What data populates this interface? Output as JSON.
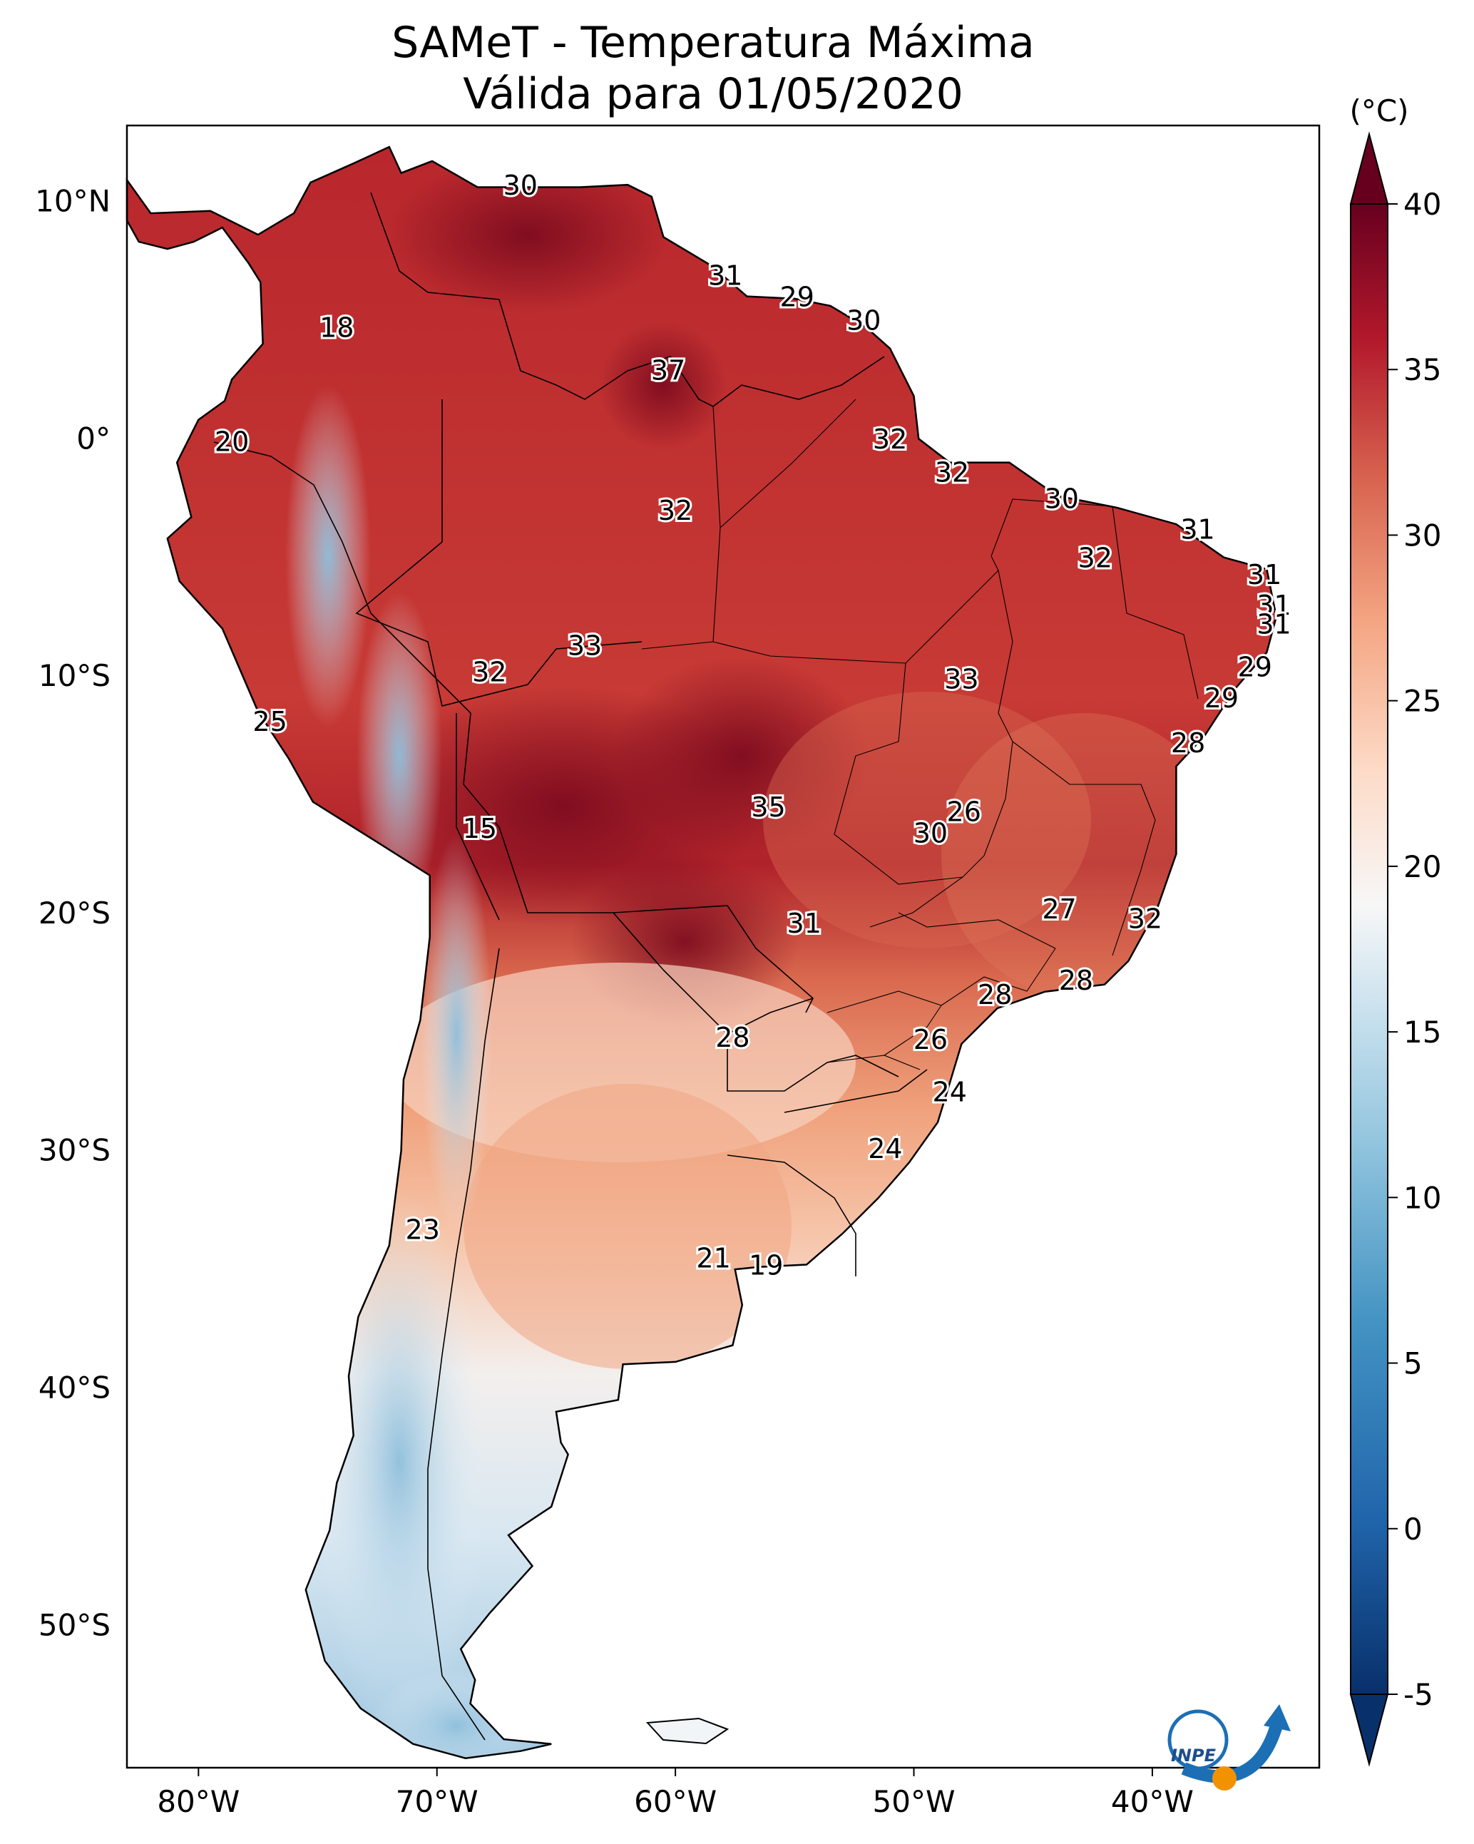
{
  "title_line1": "SAMeT - Temperatura Máxima",
  "title_line2": "Válida para 01/05/2020",
  "colorbar": {
    "unit": "(°C)",
    "ticks": [
      "40",
      "35",
      "30",
      "25",
      "20",
      "15",
      "10",
      "5",
      "0",
      "-5"
    ]
  },
  "axes": {
    "lon_ticks": [
      "80°W",
      "70°W",
      "60°W",
      "50°W",
      "40°W"
    ],
    "lat_ticks": [
      "10°N",
      "0°",
      "10°S",
      "20°S",
      "30°S",
      "40°S",
      "50°S"
    ]
  },
  "logo_text": "INPE",
  "colors": {
    "hot": "#8b0a1d",
    "warm": "#c8373a",
    "mild": "#f2a07c",
    "cool": "#f7f7f7",
    "cold": "#4a8fc6",
    "very_cold": "#08306b"
  },
  "station_labels": [
    {
      "text": "30",
      "lon": -66.5,
      "lat": 10.6
    },
    {
      "text": "31",
      "lon": -57.9,
      "lat": 6.8
    },
    {
      "text": "29",
      "lon": -54.9,
      "lat": 5.9
    },
    {
      "text": "30",
      "lon": -52.1,
      "lat": 4.9
    },
    {
      "text": "37",
      "lon": -60.3,
      "lat": 2.8
    },
    {
      "text": "18",
      "lon": -74.2,
      "lat": 4.6
    },
    {
      "text": "20",
      "lon": -78.6,
      "lat": -0.2
    },
    {
      "text": "32",
      "lon": -51.0,
      "lat": -0.1
    },
    {
      "text": "32",
      "lon": -48.4,
      "lat": -1.5
    },
    {
      "text": "32",
      "lon": -60.0,
      "lat": -3.1
    },
    {
      "text": "30",
      "lon": -43.8,
      "lat": -2.6
    },
    {
      "text": "31",
      "lon": -38.1,
      "lat": -3.9
    },
    {
      "text": "32",
      "lon": -42.4,
      "lat": -5.1
    },
    {
      "text": "31",
      "lon": -35.3,
      "lat": -5.8
    },
    {
      "text": "31",
      "lon": -34.9,
      "lat": -7.1
    },
    {
      "text": "31",
      "lon": -34.9,
      "lat": -7.9
    },
    {
      "text": "33",
      "lon": -63.8,
      "lat": -8.8
    },
    {
      "text": "32",
      "lon": -67.8,
      "lat": -9.9
    },
    {
      "text": "33",
      "lon": -48.0,
      "lat": -10.2
    },
    {
      "text": "29",
      "lon": -35.7,
      "lat": -9.7
    },
    {
      "text": "29",
      "lon": -37.1,
      "lat": -11.0
    },
    {
      "text": "28",
      "lon": -38.5,
      "lat": -12.9
    },
    {
      "text": "25",
      "lon": -77.0,
      "lat": -12.0
    },
    {
      "text": "15",
      "lon": -68.2,
      "lat": -16.5
    },
    {
      "text": "35",
      "lon": -56.1,
      "lat": -15.6
    },
    {
      "text": "26",
      "lon": -47.9,
      "lat": -15.8
    },
    {
      "text": "30",
      "lon": -49.3,
      "lat": -16.7
    },
    {
      "text": "27",
      "lon": -43.9,
      "lat": -19.9
    },
    {
      "text": "32",
      "lon": -40.3,
      "lat": -20.3
    },
    {
      "text": "31",
      "lon": -54.6,
      "lat": -20.5
    },
    {
      "text": "28",
      "lon": -46.6,
      "lat": -23.5
    },
    {
      "text": "28",
      "lon": -43.2,
      "lat": -22.9
    },
    {
      "text": "28",
      "lon": -57.6,
      "lat": -25.3
    },
    {
      "text": "26",
      "lon": -49.3,
      "lat": -25.4
    },
    {
      "text": "24",
      "lon": -48.5,
      "lat": -27.6
    },
    {
      "text": "24",
      "lon": -51.2,
      "lat": -30.0
    },
    {
      "text": "23",
      "lon": -70.6,
      "lat": -33.4
    },
    {
      "text": "21",
      "lon": -58.4,
      "lat": -34.6
    },
    {
      "text": "19",
      "lon": -56.2,
      "lat": -34.9
    }
  ]
}
